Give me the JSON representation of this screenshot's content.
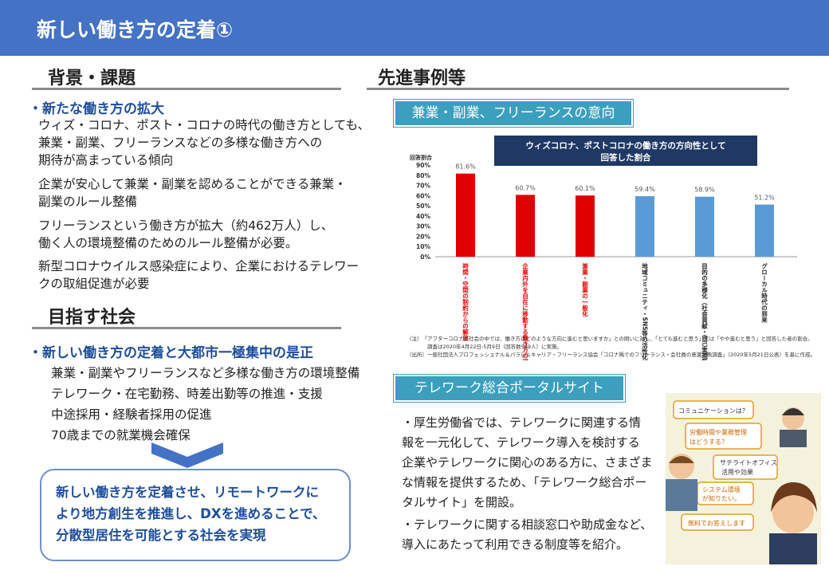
{
  "header": {
    "title": "新しい働き方の定着①"
  },
  "left": {
    "background_heading": "背景・課題",
    "bullet1_heading": "・新たな働き方の拡大",
    "bullet1_lines": [
      "ウィズ・コロナ、ポスト・コロナの時代の働き方としても、",
      "兼業・副業、フリーランスなどの多様な働き方への",
      "期待が高まっている傾向",
      "企業が安心して兼業・副業を認めることができる兼業・",
      "副業のルール整備",
      "フリーランスという働き方が拡大（約462万人）し、",
      "働く人の環境整備のためのルール整備が必要。",
      "新型コロナウイルス感染症により、企業におけるテレワー",
      "クの取組促進が必要"
    ],
    "society_heading": "目指す社会",
    "bullet2_heading": "・新しい働き方の定着と大都市一極集中の是正",
    "bullet2_lines": [
      "兼業・副業やフリーランスなど多様な働き方の環境整備",
      "テレワーク・在宅勤務、時差出勤等の推進・支援",
      "中途採用・経験者採用の促進",
      "70歳までの就業機会確保"
    ],
    "goal_lines": [
      "新しい働き方を定着させ、リモートワークに",
      "より地方創生を推進し、DXを進めることで、",
      "分散型居住を可能とする社会を実現"
    ]
  },
  "right": {
    "cases_heading": "先進事例等",
    "tag1": "兼業・副業、フリーランスの意向",
    "tag2": "テレワーク総合ポータルサイト",
    "portal_lines": [
      "・厚生労働省では、テレワークに関連する情",
      "報を一元化して、テレワーク導入を検討する",
      "企業やテレワークに関心のある方に、さまざま",
      "な情報を提供するため、「テレワーク総合ポー",
      "タルサイト」を開設。"
    ],
    "portal_lines2": [
      "・テレワークに関する相談窓口や助成金など、",
      "導入にあたって利用できる制度等を紹介。"
    ],
    "notes": [
      "（注）　「アフターコロナの社会の中では、働き方はどのような方向に進むと思いますか」との問いに対し、「とても進むと思う」又は「やや進むと思う」と回答した者の割合。",
      "　　　　調査は2020年4月22日-5月9日（回答数549人）に実施。",
      "（出所）一般社団法人プロフェッショナル＆パラレルキャリア・フリーランス協会「コロナ禍でのフリーランス・会社員の意識実態調査」（2020年5月21日公表）を基に作成。"
    ],
    "illustration_bubbles": [
      "コミュニケーションは？",
      "労働時間や業務管理はどうする？",
      "サテライトオフィス活用や効果",
      "システム環境が知りたい。",
      "無料でお答えします"
    ]
  },
  "chart_data": {
    "type": "bar",
    "title": "ウィズコロナ、ポストコロナの働き方の方向性として回答した割合",
    "title_lines": [
      "ウィズコロナ、ポストコロナの働き方の方向性として",
      "回答した割合"
    ],
    "ylabel": "回答割合",
    "ylim": [
      0,
      90
    ],
    "yticks": [
      "0%",
      "10%",
      "20%",
      "30%",
      "40%",
      "50%",
      "60%",
      "70%",
      "80%",
      "90%"
    ],
    "categories": [
      "時間・空間の制約からの解放",
      "企業内外を自在に移動する働き方の増加",
      "兼業・副業の一般化",
      "地域コミュニティ・SNS等の活性化",
      "目的の多様化（社会貢献・自己実現等）",
      "グローカル時代の到来"
    ],
    "values": [
      81.6,
      60.7,
      60.1,
      59.4,
      58.9,
      51.2
    ],
    "value_labels": [
      "81.6%",
      "60.7%",
      "60.1%",
      "59.4%",
      "58.9%",
      "51.2%"
    ],
    "bar_colors": [
      "#e00000",
      "#e00000",
      "#e00000",
      "#5b9bd5",
      "#5b9bd5",
      "#5b9bd5"
    ],
    "label_colors": [
      "#e00000",
      "#e00000",
      "#e00000",
      "#222222",
      "#222222",
      "#222222"
    ],
    "title_bg": "#1f3864"
  }
}
